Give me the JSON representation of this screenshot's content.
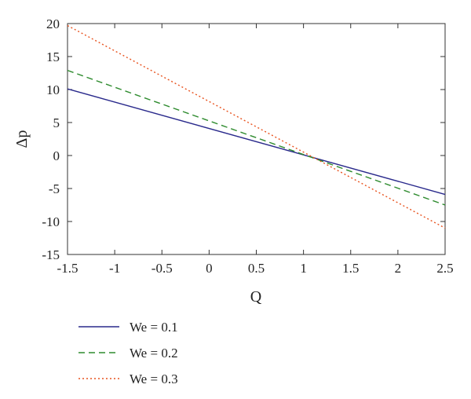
{
  "chart_data": {
    "type": "line",
    "title": "",
    "xlabel": "Q",
    "ylabel": "Δp",
    "xlim": [
      -1.5,
      2.5
    ],
    "ylim": [
      -15,
      20
    ],
    "xticks": [
      -1.5,
      -1,
      -0.5,
      0,
      0.5,
      1,
      1.5,
      2,
      2.5
    ],
    "xtick_labels": [
      "-1.5",
      "-1",
      "-0.5",
      "0",
      "0.5",
      "1",
      "1.5",
      "2",
      "2.5"
    ],
    "yticks": [
      -15,
      -10,
      -5,
      0,
      5,
      10,
      15,
      20
    ],
    "ytick_labels": [
      "-15",
      "-10",
      "-5",
      "0",
      "5",
      "10",
      "15",
      "20"
    ],
    "grid": false,
    "legend_position": "below",
    "series": [
      {
        "name": "We = 0.1",
        "color": "#2a2a8c",
        "style": "solid",
        "x": [
          -1.5,
          2.5
        ],
        "y": [
          10.1,
          -5.9
        ]
      },
      {
        "name": "We = 0.2",
        "color": "#2e8b2e",
        "style": "dashed",
        "x": [
          -1.5,
          2.5
        ],
        "y": [
          12.9,
          -7.5
        ]
      },
      {
        "name": "We = 0.3",
        "color": "#e8531f",
        "style": "dotted",
        "x": [
          -1.5,
          2.5
        ],
        "y": [
          19.7,
          -11.0
        ]
      }
    ]
  }
}
